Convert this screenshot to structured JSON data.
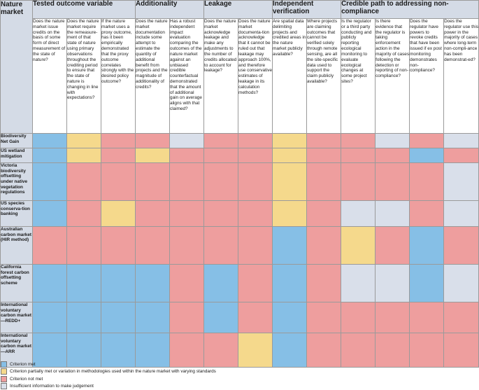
{
  "header": {
    "corner_label": "Nature market",
    "groups": [
      {
        "label": "Tested outcome variable",
        "span": 3
      },
      {
        "label": "Additionality",
        "span": 2
      },
      {
        "label": "Leakage",
        "span": 2
      },
      {
        "label": "Independent verification",
        "span": 2
      },
      {
        "label": "Credible path to addressing non-compliance",
        "span": 4
      }
    ],
    "questions": [
      "Does the nature market issue credits on the basis of some form of direct measurement of the state of nature?",
      "Does the nature market require the remeasure-ment of that state of nature using primary observations throughout the crediting period to ensure that the state of nature is changing in line with expectations?",
      "If the nature market uses a proxy outcome, has it been empirically demonstrated that the proxy outcome correlates strongly with the desired policy outcome?",
      "Does the nature market documentation include some attempt to estimate the quantity of additional benefit from projects and the magnitude of additionality of credits?",
      "Has a robust independent impact evaluation comparing the outcomes of the nature market against an unbiased credible counterfactual demonstrated that the amount of additional gain on average aligns with that claimed?",
      "Does the nature market acknowledge leakage and make any adjustments to the number of credits allocated to account for leakage?",
      "Does the nature market documenta-tion acknowledge that it cannot be ruled out that leakage may approach 100%, and therefore use conservative estimates of leakage in its calculation methods?",
      "Are spatial data delimiting projects and credited areas in the nature market publicly available?",
      "Where projects are claiming outcomes that cannot be verified solely through remote sensing, are all the site-specific data used to support the claim publicly available?",
      "Is the regulator or a third party conducting and publicly reporting ecological monitoring to evaluate ecological changes at some project sites?",
      "Is there evidence that the regulator is taking enforcement action in the majority of cases following the detection or reporting of non-compliance?",
      "Does the regulator have powers to revoke credits that have been issued if ex post monitoring demonstrates non-compliance?",
      "Does the regulator use this power in the majority of cases where long-term non-compli-ance has been demonstrat-ed?"
    ]
  },
  "rows": [
    {
      "market": "Biodiversity Net Gain",
      "cells": [
        "met",
        "partial",
        "notmet",
        "notmet",
        "insuff",
        "notmet",
        "notmet",
        "partial",
        "notmet",
        "notmet",
        "insuff",
        "notmet",
        "insuff"
      ]
    },
    {
      "market": "US wetland mitigation",
      "cells": [
        "met",
        "partial",
        "notmet",
        "partial",
        "notmet",
        "notmet",
        "notmet",
        "partial",
        "notmet",
        "notmet",
        "notmet",
        "met",
        "notmet"
      ]
    },
    {
      "market": "Victoria biodiversity offsetting under native vegetation regulations",
      "cells": [
        "met",
        "notmet",
        "notmet",
        "notmet",
        "notmet",
        "notmet",
        "notmet",
        "partial",
        "notmet",
        "notmet",
        "notmet",
        "notmet",
        "insuff"
      ]
    },
    {
      "market": "US species conserva-tion banking",
      "cells": [
        "met",
        "notmet",
        "partial",
        "notmet",
        "notmet",
        "notmet",
        "notmet",
        "partial",
        "notmet",
        "insuff",
        "insuff",
        "notmet",
        "insuff"
      ]
    },
    {
      "market": "Australian carbon market (HIR method)",
      "cells": [
        "notmet",
        "notmet",
        "notmet",
        "notmet",
        "notmet",
        "notmet",
        "notmet",
        "met",
        "notmet",
        "partial",
        "notmet",
        "met",
        "notmet"
      ]
    },
    {
      "market": "California forest carbon offsetting scheme",
      "cells": [
        "met",
        "met",
        "met",
        "met",
        "notmet",
        "met",
        "notmet",
        "met",
        "notmet",
        "insuff",
        "insuff",
        "met",
        "insuff"
      ]
    },
    {
      "market": "International voluntary carbon market—REDD+",
      "cells": [
        "met",
        "met",
        "met",
        "met",
        "notmet",
        "met",
        "notmet",
        "met",
        "notmet",
        "notmet",
        "notmet",
        "notmet",
        "notmet"
      ]
    },
    {
      "market": "International voluntary carbon market—ARR",
      "cells": [
        "met",
        "met",
        "met",
        "met",
        "notmet",
        "notmet",
        "partial",
        "met",
        "notmet",
        "notmet",
        "notmet",
        "notmet",
        "notmet"
      ]
    }
  ],
  "legend": [
    {
      "key": "met",
      "label": "Criterion met"
    },
    {
      "key": "partial",
      "label": "Criterion partially met or variation in methodologies used within the nature market with varying standards"
    },
    {
      "key": "notmet",
      "label": "Criterion not met"
    },
    {
      "key": "insuff",
      "label": "Insufficient information to make judgement"
    }
  ],
  "colors": {
    "met": "#86bfe6",
    "partial": "#f5d98c",
    "notmet": "#ee9e9e",
    "insuff": "#d9dfea",
    "header": "#d4dbe6"
  }
}
